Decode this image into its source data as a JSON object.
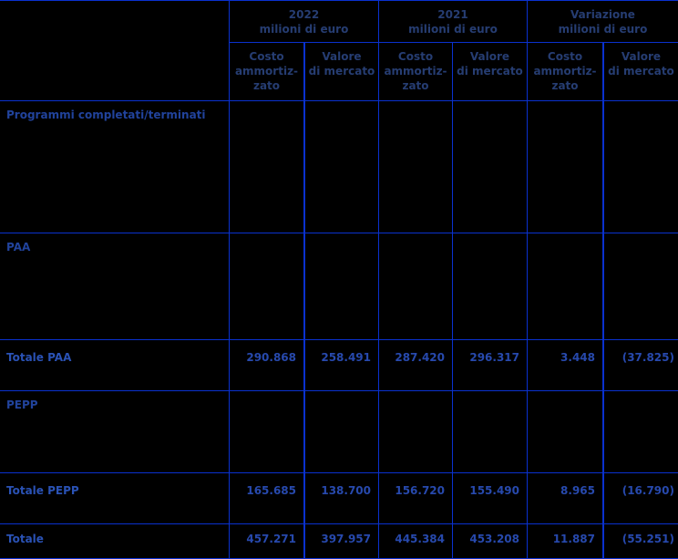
{
  "colors": {
    "background": "#000000",
    "grid": "#0a31cf",
    "header_text": "#263d72",
    "section_text": "#21439c",
    "total_text": "#2a52b5",
    "value_text": "#2749ad"
  },
  "header": {
    "groups": [
      {
        "title": "2022",
        "unit": "milioni di euro"
      },
      {
        "title": "2021",
        "unit": "milioni di euro"
      },
      {
        "title": "Variazione",
        "unit": "milioni di euro"
      }
    ],
    "sub_columns": [
      "Costo\nammortiz-\nzato",
      "Valore\ndi mercato",
      "Costo\nammortiz-\nzato",
      "Valore\ndi mercato",
      "Costo\nammortiz-\nzato",
      "Valore\ndi mercato"
    ]
  },
  "rows": [
    {
      "label": "Programmi completati/terminati",
      "type": "section",
      "values": [
        "",
        "",
        "",
        "",
        "",
        ""
      ]
    },
    {
      "label": "PAA",
      "type": "section",
      "values": [
        "",
        "",
        "",
        "",
        "",
        ""
      ]
    },
    {
      "label": "Totale PAA",
      "type": "total",
      "values": [
        "290.868",
        "258.491",
        "287.420",
        "296.317",
        "3.448",
        "(37.825)"
      ]
    },
    {
      "label": "PEPP",
      "type": "section",
      "values": [
        "",
        "",
        "",
        "",
        "",
        ""
      ]
    },
    {
      "label": "Totale PEPP",
      "type": "total",
      "values": [
        "165.685",
        "138.700",
        "156.720",
        "155.490",
        "8.965",
        "(16.790)"
      ]
    },
    {
      "label": "Totale",
      "type": "grand-total",
      "values": [
        "457.271",
        "397.957",
        "445.384",
        "453.208",
        "11.887",
        "(55.251)"
      ]
    }
  ]
}
